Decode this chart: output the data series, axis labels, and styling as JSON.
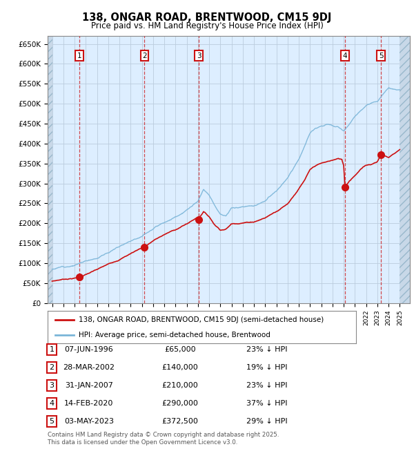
{
  "title": "138, ONGAR ROAD, BRENTWOOD, CM15 9DJ",
  "subtitle": "Price paid vs. HM Land Registry's House Price Index (HPI)",
  "background_color": "#ddeeff",
  "plot_bg": "#ddeeff",
  "grid_color": "#aaaacc",
  "sale_dates_dec": [
    1996.44,
    2002.24,
    2007.08,
    2020.12,
    2023.34
  ],
  "sale_prices": [
    65000,
    140000,
    210000,
    290000,
    372500
  ],
  "sale_labels": [
    "1",
    "2",
    "3",
    "4",
    "5"
  ],
  "table_data": [
    [
      "1",
      "07-JUN-1996",
      "£65,000",
      "23% ↓ HPI"
    ],
    [
      "2",
      "28-MAR-2002",
      "£140,000",
      "19% ↓ HPI"
    ],
    [
      "3",
      "31-JAN-2007",
      "£210,000",
      "23% ↓ HPI"
    ],
    [
      "4",
      "14-FEB-2020",
      "£290,000",
      "37% ↓ HPI"
    ],
    [
      "5",
      "03-MAY-2023",
      "£372,500",
      "29% ↓ HPI"
    ]
  ],
  "legend_entries": [
    "138, ONGAR ROAD, BRENTWOOD, CM15 9DJ (semi-detached house)",
    "HPI: Average price, semi-detached house, Brentwood"
  ],
  "footer": "Contains HM Land Registry data © Crown copyright and database right 2025.\nThis data is licensed under the Open Government Licence v3.0.",
  "hpi_color": "#7ab5d8",
  "sale_color": "#cc1111",
  "ylim": [
    0,
    670000
  ],
  "ytick_vals": [
    0,
    50000,
    100000,
    150000,
    200000,
    250000,
    300000,
    350000,
    400000,
    450000,
    500000,
    550000,
    600000,
    650000
  ],
  "ytick_labels": [
    "£0",
    "£50K",
    "£100K",
    "£150K",
    "£200K",
    "£250K",
    "£300K",
    "£350K",
    "£400K",
    "£450K",
    "£500K",
    "£550K",
    "£600K",
    "£650K"
  ],
  "xlim": [
    1993.6,
    2025.9
  ],
  "hpi_anchors_x": [
    1994.0,
    1995.0,
    1996.0,
    1997.0,
    1998.0,
    1999.0,
    2000.0,
    2001.0,
    2002.0,
    2003.0,
    2004.0,
    2005.0,
    2006.0,
    2007.0,
    2007.5,
    2008.0,
    2008.5,
    2009.0,
    2009.5,
    2010.0,
    2011.0,
    2012.0,
    2013.0,
    2014.0,
    2015.0,
    2016.0,
    2016.5,
    2017.0,
    2017.5,
    2018.0,
    2018.5,
    2019.0,
    2019.5,
    2020.0,
    2020.5,
    2021.0,
    2021.5,
    2022.0,
    2022.5,
    2023.0,
    2023.5,
    2024.0,
    2024.5,
    2025.0
  ],
  "hpi_anchors_y": [
    85000,
    92000,
    98000,
    108000,
    118000,
    132000,
    148000,
    165000,
    180000,
    200000,
    218000,
    232000,
    248000,
    268000,
    295000,
    280000,
    255000,
    235000,
    230000,
    248000,
    252000,
    255000,
    268000,
    290000,
    320000,
    370000,
    400000,
    435000,
    450000,
    455000,
    460000,
    455000,
    450000,
    440000,
    455000,
    475000,
    490000,
    500000,
    505000,
    510000,
    530000,
    545000,
    540000,
    535000
  ],
  "red_anchors_x": [
    1994.0,
    1995.0,
    1996.0,
    1996.44,
    1997.0,
    1998.0,
    1999.0,
    2000.0,
    2001.0,
    2002.0,
    2002.24,
    2003.0,
    2004.0,
    2005.0,
    2006.0,
    2007.0,
    2007.08,
    2007.5,
    2008.0,
    2008.5,
    2009.0,
    2009.5,
    2010.0,
    2011.0,
    2012.0,
    2013.0,
    2014.0,
    2015.0,
    2016.0,
    2016.5,
    2017.0,
    2017.5,
    2018.0,
    2018.5,
    2019.0,
    2019.5,
    2019.9,
    2020.0,
    2020.12,
    2020.5,
    2021.0,
    2021.5,
    2022.0,
    2022.5,
    2023.0,
    2023.34,
    2024.0,
    2024.5,
    2025.0
  ],
  "red_anchors_y": [
    55000,
    60000,
    63000,
    65000,
    72000,
    83000,
    95000,
    108000,
    123000,
    138000,
    140000,
    155000,
    170000,
    182000,
    196000,
    213000,
    210000,
    228000,
    215000,
    195000,
    183000,
    185000,
    198000,
    202000,
    205000,
    215000,
    232000,
    252000,
    290000,
    310000,
    335000,
    345000,
    350000,
    353000,
    357000,
    360000,
    358000,
    350000,
    290000,
    305000,
    320000,
    335000,
    345000,
    348000,
    355000,
    372500,
    365000,
    375000,
    385000
  ]
}
